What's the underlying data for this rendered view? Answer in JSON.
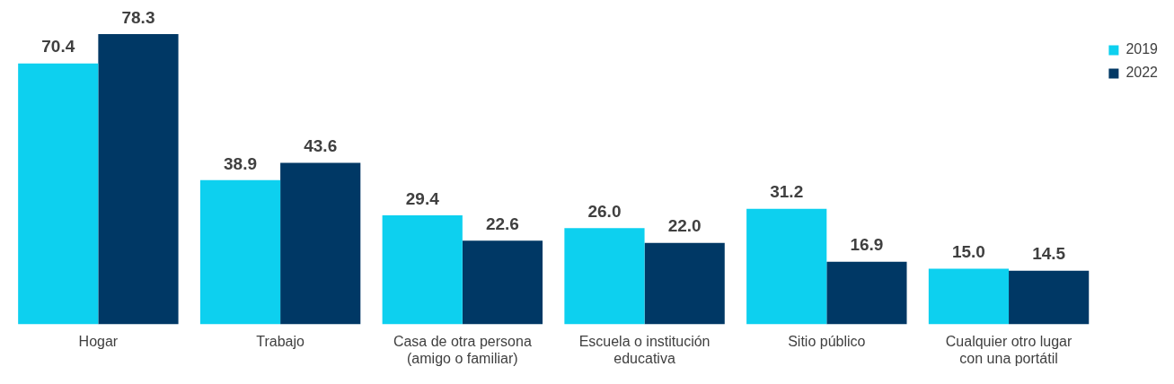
{
  "chart_data": {
    "type": "bar",
    "categories": [
      "Hogar",
      "Trabajo",
      "Casa de otra persona (amigo o familiar)",
      "Escuela o institución educativa",
      "Sitio público",
      "Cualquier otro lugar con una portátil"
    ],
    "series": [
      {
        "name": "2019",
        "color": "#0dd0ef",
        "values": [
          70.4,
          38.9,
          29.4,
          26.0,
          31.2,
          15.0
        ],
        "value_labels": [
          "70.4",
          "38.9",
          "29.4",
          "26.0",
          "31.2",
          "15.0"
        ]
      },
      {
        "name": "2022",
        "color": "#003865",
        "values": [
          78.3,
          43.6,
          22.6,
          22.0,
          16.9,
          14.5
        ],
        "value_labels": [
          "78.3",
          "43.6",
          "22.6",
          "22.0",
          "16.9",
          "14.5"
        ]
      }
    ],
    "grid": false,
    "legend": "top right"
  }
}
